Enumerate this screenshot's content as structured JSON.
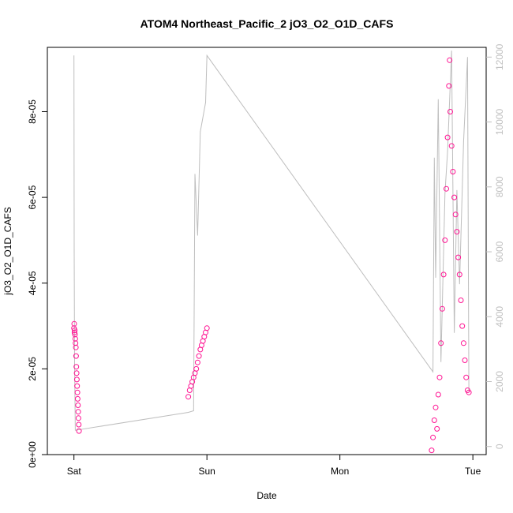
{
  "chart_data": {
    "type": "scatter",
    "title": "ATOM4 Northeast_Pacific_2 jO3_O2_O1D_CAFS",
    "xlabel": "Date",
    "ylabel": "jO3_O2_O1D_CAFS",
    "x_ticks": [
      "Sat",
      "Sun",
      "Mon",
      "Tue"
    ],
    "y_ticks": [
      "0e+00",
      "2e-05",
      "4e-05",
      "6e-05",
      "8e-05"
    ],
    "y_right_ticks": [
      "0",
      "2000",
      "4000",
      "6000",
      "8000",
      "10000",
      "12000"
    ],
    "xlim_days": [
      -0.2,
      3.1
    ],
    "ylim": [
      0,
      9.5e-05
    ],
    "y_right_lim": [
      -250,
      12300
    ],
    "colors": {
      "points": "#ff1493",
      "altitude_line": "#bebebe",
      "axis": "#000000",
      "right_axis": "#c0c0c0"
    },
    "segments": [
      {
        "name": "Sat",
        "points": [
          [
            0.0,
            2.95e-05
          ],
          [
            0.002,
            3.05e-05
          ],
          [
            0.004,
            2.85e-05
          ],
          [
            0.006,
            2.9e-05
          ],
          [
            0.008,
            2.8e-05
          ],
          [
            0.01,
            2.7e-05
          ],
          [
            0.012,
            2.6e-05
          ],
          [
            0.014,
            2.5e-05
          ],
          [
            0.016,
            2.3e-05
          ],
          [
            0.018,
            2.05e-05
          ],
          [
            0.02,
            1.9e-05
          ],
          [
            0.022,
            1.75e-05
          ],
          [
            0.024,
            1.6e-05
          ],
          [
            0.026,
            1.45e-05
          ],
          [
            0.028,
            1.3e-05
          ],
          [
            0.03,
            1.15e-05
          ],
          [
            0.032,
            1e-05
          ],
          [
            0.034,
            8.5e-06
          ],
          [
            0.036,
            7e-06
          ],
          [
            0.038,
            5.5e-06
          ]
        ]
      },
      {
        "name": "Sun",
        "points": [
          [
            0.86,
            1.35e-05
          ],
          [
            0.87,
            1.5e-05
          ],
          [
            0.88,
            1.6e-05
          ],
          [
            0.89,
            1.7e-05
          ],
          [
            0.9,
            1.8e-05
          ],
          [
            0.91,
            1.9e-05
          ],
          [
            0.92,
            2e-05
          ],
          [
            0.93,
            2.15e-05
          ],
          [
            0.94,
            2.3e-05
          ],
          [
            0.95,
            2.45e-05
          ],
          [
            0.96,
            2.55e-05
          ],
          [
            0.97,
            2.65e-05
          ],
          [
            0.98,
            2.75e-05
          ],
          [
            0.99,
            2.85e-05
          ],
          [
            1.0,
            2.95e-05
          ]
        ]
      },
      {
        "name": "Tue",
        "points": [
          [
            2.69,
            1e-06
          ],
          [
            2.7,
            4e-06
          ],
          [
            2.71,
            8e-06
          ],
          [
            2.72,
            1.1e-05
          ],
          [
            2.73,
            6e-06
          ],
          [
            2.74,
            1.4e-05
          ],
          [
            2.75,
            1.8e-05
          ],
          [
            2.76,
            2.6e-05
          ],
          [
            2.77,
            3.4e-05
          ],
          [
            2.78,
            4.2e-05
          ],
          [
            2.79,
            5e-05
          ],
          [
            2.8,
            6.2e-05
          ],
          [
            2.81,
            7.4e-05
          ],
          [
            2.82,
            8.6e-05
          ],
          [
            2.825,
            9.2e-05
          ],
          [
            2.83,
            8e-05
          ],
          [
            2.84,
            7.2e-05
          ],
          [
            2.85,
            6.6e-05
          ],
          [
            2.86,
            6e-05
          ],
          [
            2.87,
            5.6e-05
          ],
          [
            2.88,
            5.2e-05
          ],
          [
            2.89,
            4.6e-05
          ],
          [
            2.9,
            4.2e-05
          ],
          [
            2.91,
            3.6e-05
          ],
          [
            2.92,
            3e-05
          ],
          [
            2.93,
            2.6e-05
          ],
          [
            2.94,
            2.2e-05
          ],
          [
            2.95,
            1.8e-05
          ],
          [
            2.96,
            1.5e-05
          ],
          [
            2.97,
            1.45e-05
          ]
        ]
      }
    ],
    "altitude_line": [
      [
        0.0,
        12050
      ],
      [
        0.002,
        6000
      ],
      [
        0.005,
        2500
      ],
      [
        0.01,
        500
      ],
      [
        0.86,
        1050
      ],
      [
        0.9,
        1100
      ],
      [
        0.91,
        8400
      ],
      [
        0.93,
        6500
      ],
      [
        0.95,
        9700
      ],
      [
        0.99,
        10600
      ],
      [
        1.0,
        12050
      ],
      [
        2.7,
        2300
      ],
      [
        2.71,
        8900
      ],
      [
        2.72,
        5200
      ],
      [
        2.74,
        10700
      ],
      [
        2.76,
        2600
      ],
      [
        2.79,
        7800
      ],
      [
        2.81,
        9100
      ],
      [
        2.84,
        12200
      ],
      [
        2.86,
        3500
      ],
      [
        2.88,
        7900
      ],
      [
        2.9,
        5000
      ],
      [
        2.93,
        9400
      ],
      [
        2.96,
        12000
      ],
      [
        2.97,
        1700
      ]
    ]
  }
}
